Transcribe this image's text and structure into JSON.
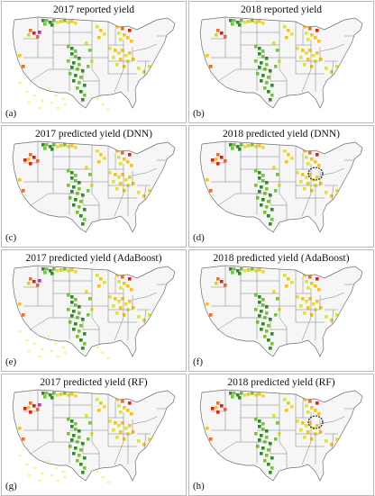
{
  "figure": {
    "panels": [
      {
        "title": "2017 reported yield",
        "letter": "(a)",
        "year": 2017,
        "method": "reported",
        "highlight_circle": false,
        "sparse_yellow_points": true
      },
      {
        "title": "2018 reported yield",
        "letter": "(b)",
        "year": 2018,
        "method": "reported",
        "highlight_circle": false,
        "sparse_yellow_points": false
      },
      {
        "title": "2017 predicted yield (DNN)",
        "letter": "(c)",
        "year": 2017,
        "method": "DNN",
        "highlight_circle": false,
        "sparse_yellow_points": false
      },
      {
        "title": "2018 predicted yield (DNN)",
        "letter": "(d)",
        "year": 2018,
        "method": "DNN",
        "highlight_circle": true,
        "sparse_yellow_points": false
      },
      {
        "title": "2017 predicted yield (AdaBoost)",
        "letter": "(e)",
        "year": 2017,
        "method": "AdaBoost",
        "highlight_circle": false,
        "sparse_yellow_points": true
      },
      {
        "title": "2018 predicted yield (AdaBoost)",
        "letter": "(f)",
        "year": 2018,
        "method": "AdaBoost",
        "highlight_circle": false,
        "sparse_yellow_points": false
      },
      {
        "title": "2017 predicted yield (RF)",
        "letter": "(g)",
        "year": 2017,
        "method": "RF",
        "highlight_circle": false,
        "sparse_yellow_points": true
      },
      {
        "title": "2018 predicted yield (RF)",
        "letter": "(h)",
        "year": 2018,
        "method": "RF",
        "highlight_circle": true,
        "sparse_yellow_points": false
      }
    ],
    "colors": {
      "state_fill": "#f7f7f7",
      "state_border": "#6f6f6f",
      "county_dots": "#c9c9c9",
      "high_yield": "#2e8b2e",
      "mid_high_yield": "#7fbf3f",
      "mid_yield": "#d8e34a",
      "low_mid_yield": "#f2c232",
      "low_yield": "#e8702a",
      "very_low_yield": "#d4241e",
      "outlier": "#c02fa8",
      "highlight_circle": "#111111",
      "sparse_point": "#fff07a"
    }
  }
}
